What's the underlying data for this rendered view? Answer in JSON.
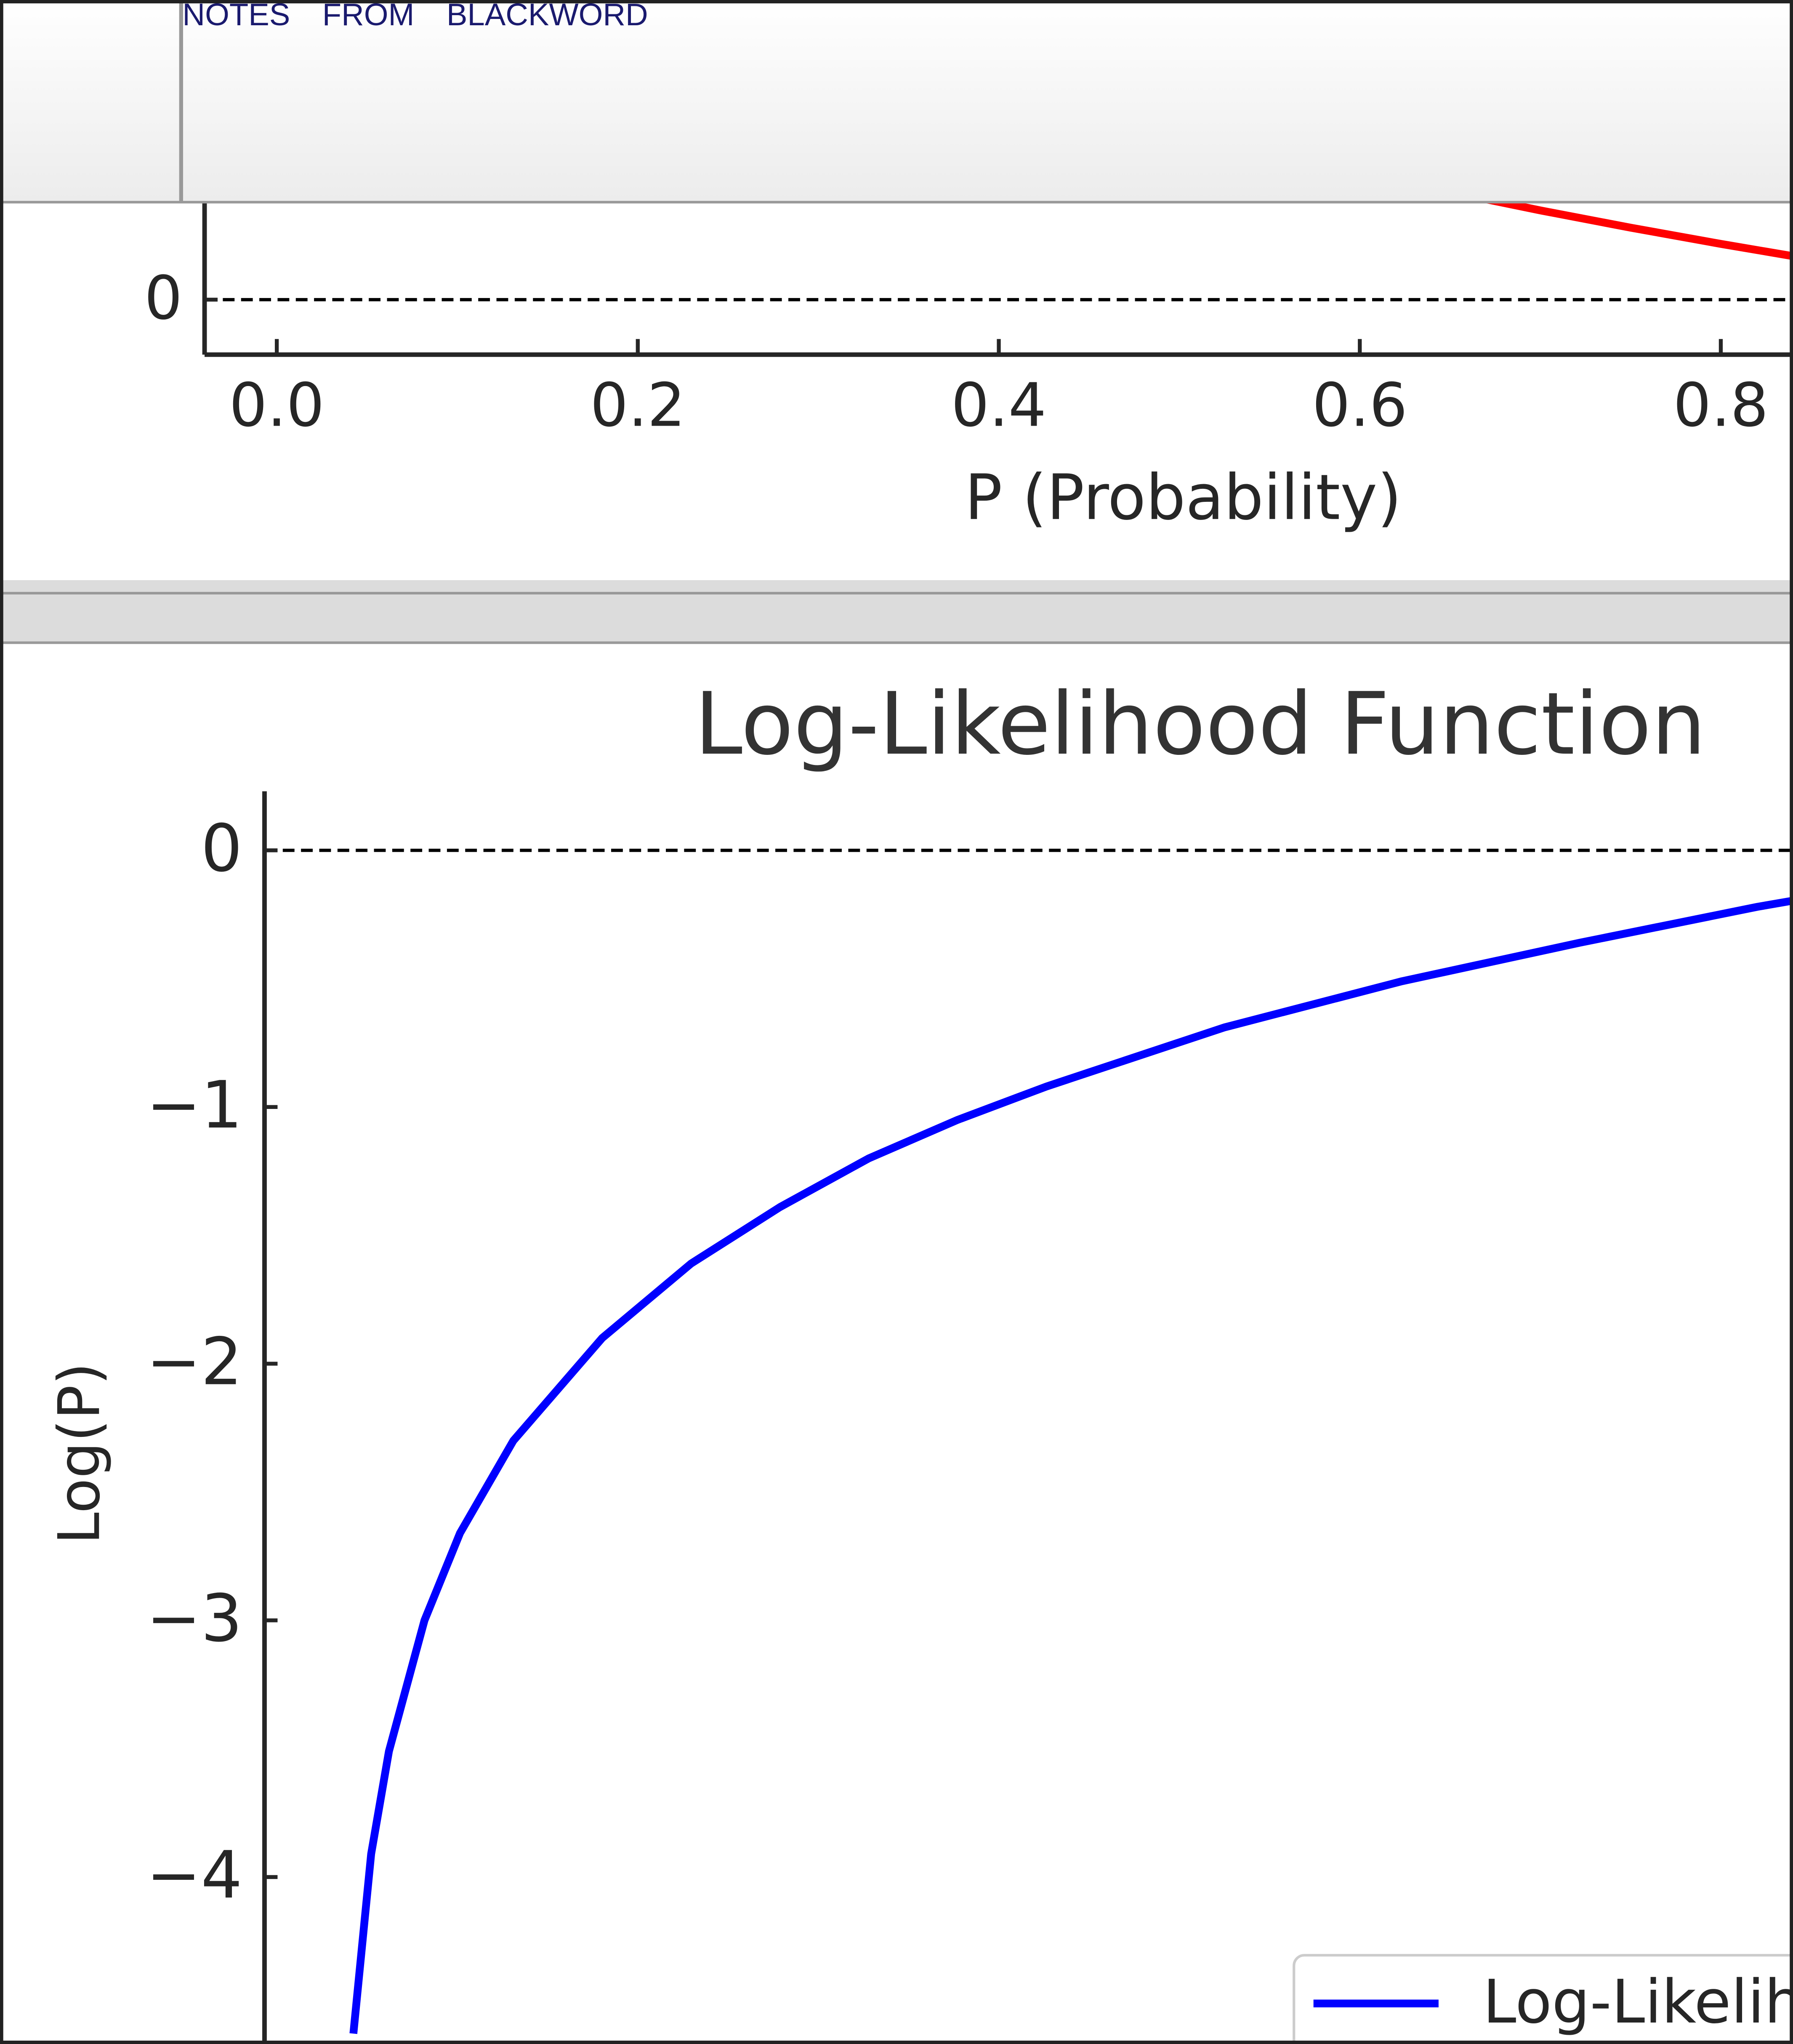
{
  "header": {
    "title": "NOTES FROM BLACKWORD"
  },
  "chart_data": [
    {
      "type": "line",
      "xlabel": "P (Probability)",
      "x": [
        0.65,
        0.7,
        0.75,
        0.8,
        0.84
      ],
      "series": [
        {
          "color": "#ff0000",
          "values": [
            0.431,
            0.357,
            0.288,
            0.223,
            0.174
          ]
        }
      ],
      "xlim": [
        -0.04,
        0.84
      ],
      "ylim": [
        -0.22,
        0.39
      ],
      "xticks": [
        {
          "value": 0,
          "label": "0.0"
        },
        0.2,
        0.4,
        0.6,
        0.8
      ],
      "yticks": [
        0
      ],
      "reference_line": 0
    },
    {
      "type": "line",
      "title": "Log-Likelihood Function",
      "ylabel": "Log(P)",
      "x": [
        0.01,
        0.02,
        0.03,
        0.05,
        0.07,
        0.1,
        0.15,
        0.2,
        0.25,
        0.3,
        0.35,
        0.4,
        0.5,
        0.6,
        0.7,
        0.8,
        0.85
      ],
      "series": [
        {
          "name": "Log-Likelihood",
          "color": "#0000ff",
          "values": [
            -4.61,
            -3.91,
            -3.51,
            -3.0,
            -2.66,
            -2.3,
            -1.9,
            -1.61,
            -1.39,
            -1.2,
            -1.05,
            -0.92,
            -0.69,
            -0.51,
            -0.36,
            -0.22,
            -0.16
          ]
        }
      ],
      "xlim": [
        -0.04,
        0.82
      ],
      "ylim": [
        -4.65,
        0.23
      ],
      "yticks": [
        0,
        {
          "value": -1,
          "label": "−1"
        },
        {
          "value": -2,
          "label": "−2"
        },
        {
          "value": -3,
          "label": "−3"
        },
        {
          "value": -4,
          "label": "−4"
        }
      ],
      "reference_line": 0,
      "legend": "lower right"
    }
  ]
}
